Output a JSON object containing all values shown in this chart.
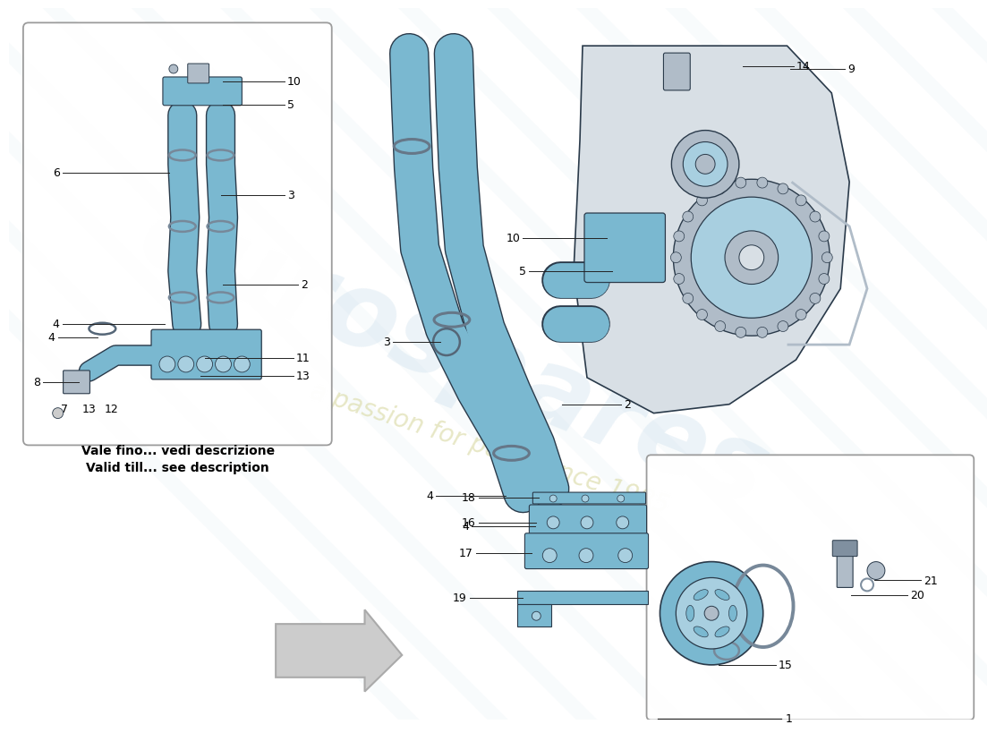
{
  "background_color": "#ffffff",
  "part_color_blue": "#7ab8d0",
  "part_color_blue_light": "#a8cfe0",
  "part_color_grey_dark": "#8090a0",
  "part_color_grey_mid": "#b0bcc8",
  "part_color_grey_light": "#d8dfe5",
  "outline_color": "#2a3a4a",
  "line_color": "#222222",
  "text_color": "#000000",
  "watermark_blue": "#c0d8e8",
  "watermark_yellow": "#d8d8a0",
  "arrow_fill": "#cccccc",
  "arrow_edge": "#aaaaaa",
  "box_edge": "#999999",
  "label_fontsize": 9,
  "note_italian": "Vale fino... vedi descrizione",
  "note_english": "Valid till... see description",
  "brand": "eurospares",
  "passion": "a passion for parts since 1985"
}
